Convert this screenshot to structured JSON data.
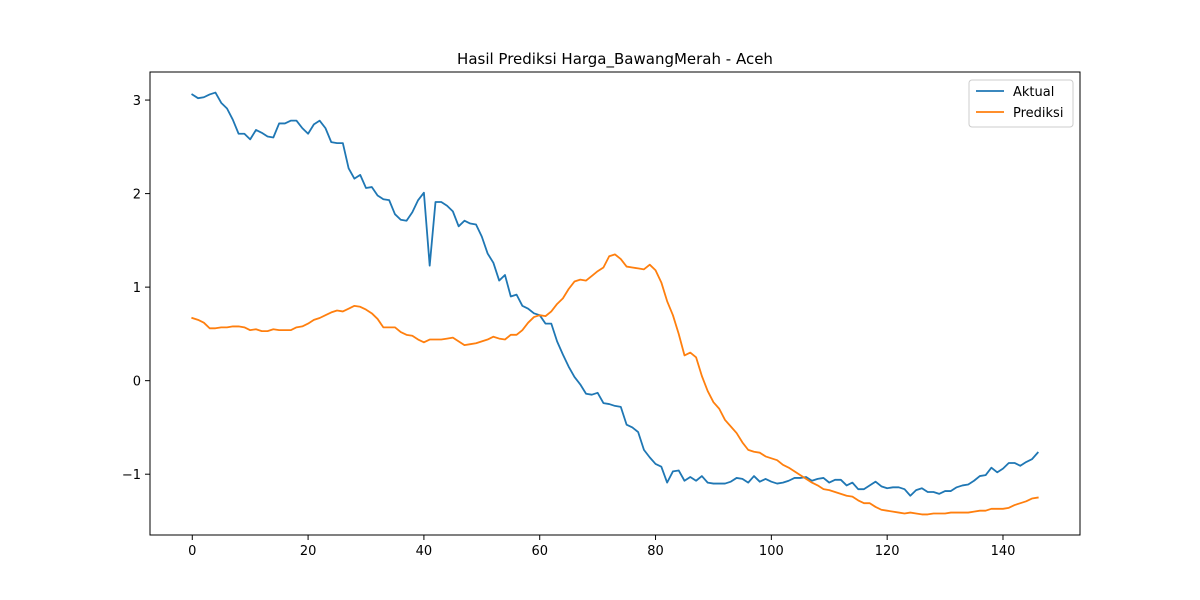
{
  "chart_data": {
    "type": "line",
    "title": "Hasil Prediksi Harga_BawangMerah - Aceh",
    "xlabel": "",
    "ylabel": "",
    "xlim": [
      -7.3,
      153.3
    ],
    "ylim": [
      -1.65,
      3.3
    ],
    "xticks": [
      0,
      20,
      40,
      60,
      80,
      100,
      120,
      140
    ],
    "yticks": [
      -1,
      0,
      1,
      2,
      3
    ],
    "grid": false,
    "legend": "top-right",
    "series": [
      {
        "name": "Aktual",
        "color": "#1f77b4",
        "values": [
          3.06,
          3.02,
          3.03,
          3.06,
          3.08,
          2.97,
          2.91,
          2.79,
          2.64,
          2.64,
          2.58,
          2.68,
          2.65,
          2.61,
          2.6,
          2.75,
          2.75,
          2.78,
          2.78,
          2.7,
          2.64,
          2.74,
          2.78,
          2.7,
          2.55,
          2.54,
          2.54,
          2.27,
          2.16,
          2.2,
          2.06,
          2.07,
          1.98,
          1.94,
          1.93,
          1.78,
          1.72,
          1.71,
          1.8,
          1.93,
          2.01,
          1.23,
          1.91,
          1.91,
          1.87,
          1.81,
          1.65,
          1.71,
          1.68,
          1.67,
          1.54,
          1.36,
          1.26,
          1.07,
          1.13,
          0.9,
          0.92,
          0.8,
          0.77,
          0.72,
          0.7,
          0.61,
          0.61,
          0.42,
          0.28,
          0.15,
          0.04,
          -0.04,
          -0.14,
          -0.15,
          -0.13,
          -0.24,
          -0.25,
          -0.27,
          -0.28,
          -0.47,
          -0.5,
          -0.55,
          -0.74,
          -0.82,
          -0.89,
          -0.92,
          -1.09,
          -0.97,
          -0.96,
          -1.07,
          -1.03,
          -1.07,
          -1.02,
          -1.09,
          -1.1,
          -1.1,
          -1.1,
          -1.08,
          -1.04,
          -1.05,
          -1.09,
          -1.02,
          -1.08,
          -1.05,
          -1.08,
          -1.1,
          -1.09,
          -1.07,
          -1.04,
          -1.04,
          -1.03,
          -1.07,
          -1.05,
          -1.04,
          -1.09,
          -1.06,
          -1.06,
          -1.12,
          -1.09,
          -1.16,
          -1.16,
          -1.12,
          -1.08,
          -1.13,
          -1.15,
          -1.14,
          -1.14,
          -1.16,
          -1.23,
          -1.17,
          -1.15,
          -1.19,
          -1.19,
          -1.21,
          -1.18,
          -1.18,
          -1.14,
          -1.12,
          -1.11,
          -1.07,
          -1.02,
          -1.01,
          -0.93,
          -0.98,
          -0.94,
          -0.88,
          -0.88,
          -0.91,
          -0.87,
          -0.84,
          -0.77
        ]
      },
      {
        "name": "Prediksi",
        "color": "#ff7f0e",
        "values": [
          0.67,
          0.65,
          0.62,
          0.56,
          0.56,
          0.57,
          0.57,
          0.58,
          0.58,
          0.57,
          0.54,
          0.55,
          0.53,
          0.53,
          0.55,
          0.54,
          0.54,
          0.54,
          0.57,
          0.58,
          0.61,
          0.65,
          0.67,
          0.7,
          0.73,
          0.75,
          0.74,
          0.77,
          0.8,
          0.79,
          0.76,
          0.72,
          0.66,
          0.57,
          0.57,
          0.57,
          0.52,
          0.49,
          0.48,
          0.44,
          0.41,
          0.44,
          0.44,
          0.44,
          0.45,
          0.46,
          0.42,
          0.38,
          0.39,
          0.4,
          0.42,
          0.44,
          0.47,
          0.45,
          0.44,
          0.49,
          0.49,
          0.54,
          0.62,
          0.68,
          0.7,
          0.69,
          0.74,
          0.82,
          0.88,
          0.98,
          1.06,
          1.08,
          1.07,
          1.12,
          1.17,
          1.21,
          1.33,
          1.35,
          1.3,
          1.22,
          1.21,
          1.2,
          1.19,
          1.24,
          1.18,
          1.05,
          0.85,
          0.7,
          0.5,
          0.27,
          0.3,
          0.25,
          0.05,
          -0.11,
          -0.23,
          -0.3,
          -0.42,
          -0.49,
          -0.56,
          -0.66,
          -0.74,
          -0.76,
          -0.77,
          -0.81,
          -0.83,
          -0.85,
          -0.9,
          -0.93,
          -0.97,
          -1.01,
          -1.05,
          -1.09,
          -1.12,
          -1.16,
          -1.17,
          -1.19,
          -1.21,
          -1.23,
          -1.24,
          -1.28,
          -1.31,
          -1.31,
          -1.35,
          -1.38,
          -1.39,
          -1.4,
          -1.41,
          -1.42,
          -1.41,
          -1.42,
          -1.43,
          -1.43,
          -1.42,
          -1.42,
          -1.42,
          -1.41,
          -1.41,
          -1.41,
          -1.41,
          -1.4,
          -1.39,
          -1.39,
          -1.37,
          -1.37,
          -1.37,
          -1.36,
          -1.33,
          -1.31,
          -1.29,
          -1.26,
          -1.25
        ]
      }
    ]
  }
}
